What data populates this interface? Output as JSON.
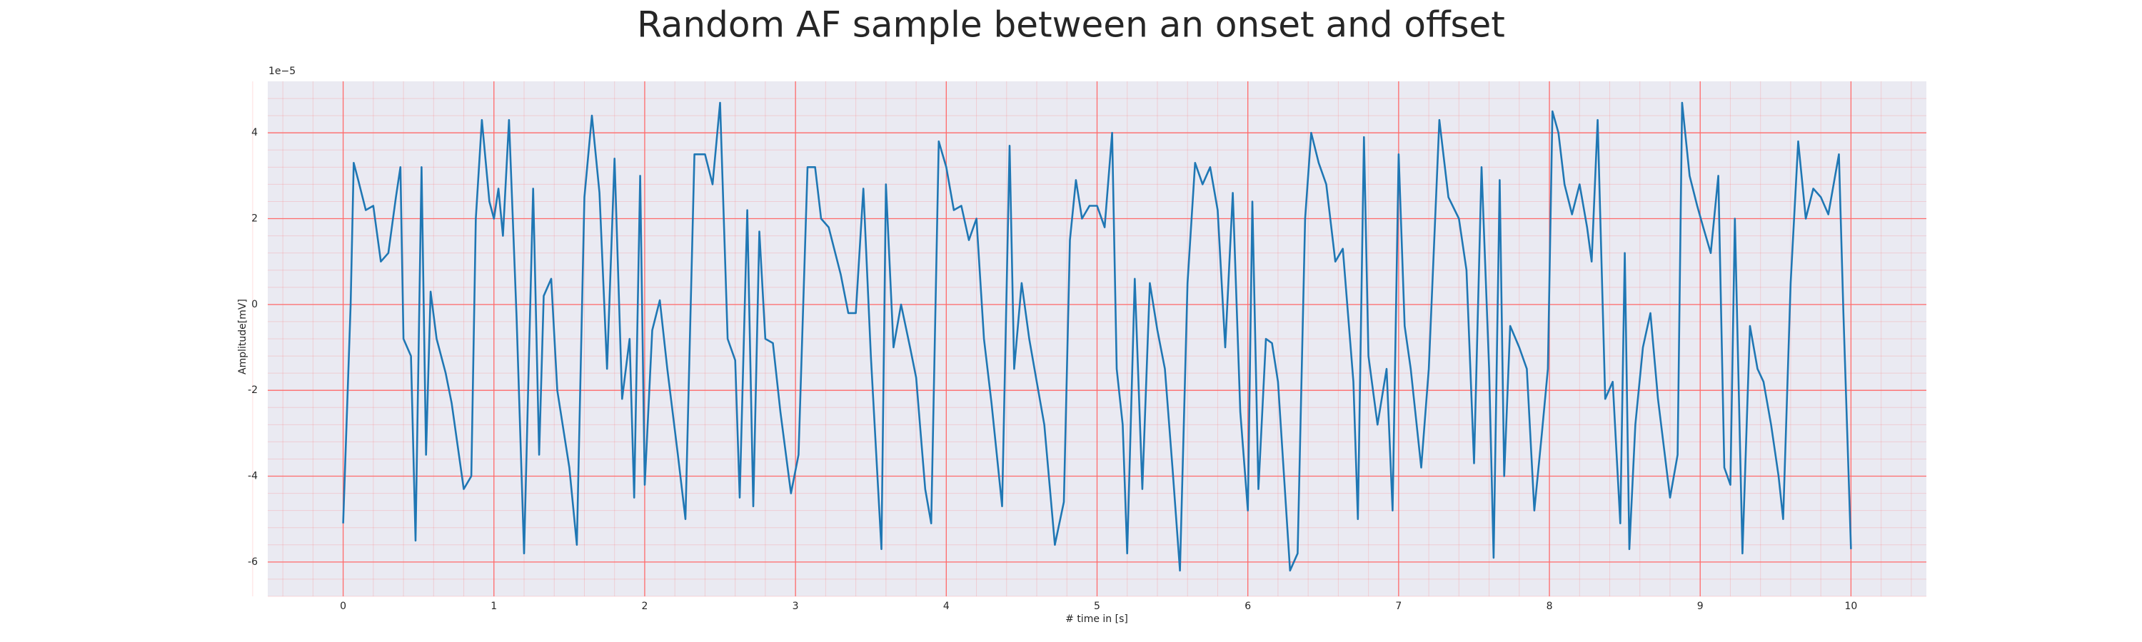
{
  "chart_data": {
    "type": "line",
    "title": "Random AF sample between an onset and offset",
    "x_label": "# time in [s]",
    "y_label": "Amplitude[mV]",
    "y_offset_label": "1e−5",
    "xlim": [
      -0.5,
      10.5
    ],
    "ylim": [
      -6.8,
      5.2
    ],
    "xticks": [
      0,
      1,
      2,
      3,
      4,
      5,
      6,
      7,
      8,
      9,
      10
    ],
    "yticks": [
      -6,
      -4,
      -2,
      0,
      2,
      4
    ],
    "grid": true,
    "minor_grid": true,
    "background": "#eaeaf2",
    "grid_color": "#ff6b6b",
    "color": "#1f77b4",
    "x": [
      0,
      0.05,
      0.07,
      0.1,
      0.15,
      0.2,
      0.25,
      0.3,
      0.35,
      0.38,
      0.4,
      0.45,
      0.48,
      0.52,
      0.55,
      0.58,
      0.62,
      0.68,
      0.72,
      0.8,
      0.85,
      0.88,
      0.92,
      0.97,
      1.0,
      1.03,
      1.06,
      1.1,
      1.15,
      1.2,
      1.26,
      1.3,
      1.33,
      1.38,
      1.42,
      1.5,
      1.55,
      1.6,
      1.65,
      1.7,
      1.75,
      1.8,
      1.85,
      1.9,
      1.93,
      1.97,
      2.0,
      2.05,
      2.1,
      2.15,
      2.22,
      2.27,
      2.33,
      2.4,
      2.45,
      2.5,
      2.55,
      2.6,
      2.63,
      2.68,
      2.72,
      2.76,
      2.8,
      2.85,
      2.9,
      2.97,
      3.02,
      3.08,
      3.13,
      3.17,
      3.22,
      3.3,
      3.35,
      3.4,
      3.45,
      3.5,
      3.57,
      3.6,
      3.65,
      3.7,
      3.76,
      3.8,
      3.86,
      3.9,
      3.95,
      4.0,
      4.05,
      4.1,
      4.15,
      4.2,
      4.25,
      4.3,
      4.37,
      4.42,
      4.45,
      4.5,
      4.55,
      4.6,
      4.65,
      4.72,
      4.78,
      4.82,
      4.86,
      4.9,
      4.95,
      5.0,
      5.05,
      5.1,
      5.13,
      5.17,
      5.2,
      5.25,
      5.3,
      5.35,
      5.4,
      5.45,
      5.5,
      5.55,
      5.6,
      5.65,
      5.7,
      5.75,
      5.8,
      5.85,
      5.9,
      5.95,
      6.0,
      6.03,
      6.07,
      6.12,
      6.16,
      6.2,
      6.28,
      6.33,
      6.38,
      6.42,
      6.47,
      6.52,
      6.58,
      6.63,
      6.7,
      6.73,
      6.77,
      6.8,
      6.86,
      6.92,
      6.96,
      7.0,
      7.04,
      7.08,
      7.15,
      7.2,
      7.27,
      7.33,
      7.4,
      7.45,
      7.5,
      7.55,
      7.6,
      7.63,
      7.67,
      7.7,
      7.74,
      7.8,
      7.85,
      7.9,
      7.95,
      7.99,
      8.02,
      8.06,
      8.1,
      8.15,
      8.2,
      8.25,
      8.28,
      8.32,
      8.37,
      8.42,
      8.47,
      8.5,
      8.53,
      8.57,
      8.62,
      8.67,
      8.72,
      8.8,
      8.85,
      8.88,
      8.93,
      8.98,
      9.02,
      9.07,
      9.12,
      9.16,
      9.2,
      9.23,
      9.28,
      9.33,
      9.38,
      9.42,
      9.47,
      9.52,
      9.55,
      9.6,
      9.65,
      9.7,
      9.75,
      9.8,
      9.85,
      9.92,
      9.95,
      10.0
    ],
    "values": [
      -5.1,
      0.0,
      3.3,
      2.9,
      2.2,
      2.3,
      1.0,
      1.2,
      2.5,
      3.2,
      -0.8,
      -1.2,
      -5.5,
      3.2,
      -3.5,
      0.3,
      -0.8,
      -1.6,
      -2.3,
      -4.3,
      -4.0,
      2.0,
      4.3,
      2.4,
      2.0,
      2.7,
      1.6,
      4.3,
      -0.3,
      -5.8,
      2.7,
      -3.5,
      0.2,
      0.6,
      -2.0,
      -3.8,
      -5.6,
      2.5,
      4.4,
      2.6,
      -1.5,
      3.4,
      -2.2,
      -0.8,
      -4.5,
      3.0,
      -4.2,
      -0.6,
      0.1,
      -1.5,
      -3.5,
      -5.0,
      3.5,
      3.5,
      2.8,
      4.7,
      -0.8,
      -1.3,
      -4.5,
      2.2,
      -4.7,
      1.7,
      -0.8,
      -0.9,
      -2.5,
      -4.4,
      -3.5,
      3.2,
      3.2,
      2.0,
      1.8,
      0.7,
      -0.2,
      -0.2,
      2.7,
      -1.2,
      -5.7,
      2.8,
      -1.0,
      0.0,
      -1.0,
      -1.7,
      -4.3,
      -5.1,
      3.8,
      3.2,
      2.2,
      2.3,
      1.5,
      2.0,
      -0.8,
      -2.3,
      -4.7,
      3.7,
      -1.5,
      0.5,
      -0.8,
      -1.8,
      -2.8,
      -5.6,
      -4.6,
      1.5,
      2.9,
      2.0,
      2.3,
      2.3,
      1.8,
      4.0,
      -1.5,
      -2.8,
      -5.8,
      0.6,
      -4.3,
      0.5,
      -0.6,
      -1.5,
      -3.8,
      -6.2,
      0.5,
      3.3,
      2.8,
      3.2,
      2.2,
      -1.0,
      2.6,
      -2.5,
      -4.8,
      2.4,
      -4.3,
      -0.8,
      -0.9,
      -1.8,
      -6.2,
      -5.8,
      2.0,
      4.0,
      3.3,
      2.8,
      1.0,
      1.3,
      -1.8,
      -5.0,
      3.9,
      -1.2,
      -2.8,
      -1.5,
      -4.8,
      3.5,
      -0.5,
      -1.5,
      -3.8,
      -1.5,
      4.3,
      2.5,
      2.0,
      0.8,
      -3.7,
      3.2,
      -1.5,
      -5.9,
      2.9,
      -4.0,
      -0.5,
      -1.0,
      -1.5,
      -4.8,
      -3.0,
      -1.5,
      4.5,
      4.0,
      2.8,
      2.1,
      2.8,
      1.8,
      1.0,
      4.3,
      -2.2,
      -1.8,
      -5.1,
      1.2,
      -5.7,
      -2.8,
      -1.0,
      -0.2,
      -2.2,
      -4.5,
      -3.5,
      4.7,
      3.0,
      2.3,
      1.8,
      1.2,
      3.0,
      -3.8,
      -4.2,
      2.0,
      -5.8,
      -0.5,
      -1.5,
      -1.8,
      -2.8,
      -4.0,
      -5.0,
      0.5,
      3.8,
      2.0,
      2.7,
      2.5,
      2.1,
      3.5,
      -0.2,
      -5.7
    ]
  }
}
